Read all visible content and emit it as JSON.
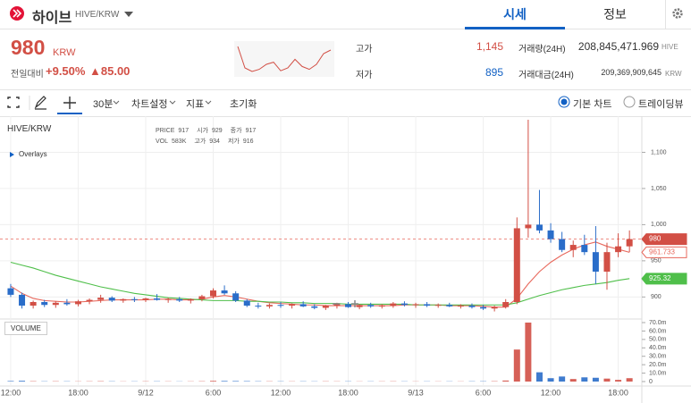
{
  "header": {
    "name": "하이브",
    "pair": "HIVE/KRW",
    "tabs": [
      "시세",
      "정보"
    ],
    "price": "980",
    "unit": "KRW",
    "change_label": "전일대비",
    "change_pct": "+9.50%",
    "change_abs": "▲85.00",
    "sparkline": [
      930,
      900,
      895,
      898,
      905,
      908,
      896,
      900,
      912,
      902,
      898,
      905,
      920,
      925
    ],
    "stats": [
      {
        "label": "고가",
        "value": "1,145"
      },
      {
        "label": "저가",
        "value": "895"
      },
      {
        "label": "거래량(24H)",
        "value": "208,845,471.969",
        "unit": "HIVE"
      },
      {
        "label": "거래대금(24H)",
        "value": "209,369,909,645",
        "unit": "KRW"
      }
    ]
  },
  "toolbar": {
    "interval": "30분",
    "items": [
      "차트설정",
      "지표",
      "초기화"
    ],
    "radios": [
      "기본 차트",
      "트레이딩뷰"
    ]
  },
  "legend": {
    "symbol": "HIVE/KRW",
    "overlays": "Overlays",
    "volume": "VOLUME",
    "price_row": [
      "PRICE",
      "917",
      "시가",
      "929",
      "종가",
      "917"
    ],
    "vol_row": [
      "VOL",
      "583K",
      "고가",
      "934",
      "저가",
      "916"
    ]
  },
  "chart_data": {
    "type": "candlestick",
    "up_color": "#d24f45",
    "down_color": "#2a6dc9",
    "grid": true,
    "x": [
      0,
      1,
      2,
      3,
      4,
      5,
      6,
      7,
      8,
      9,
      10,
      11,
      12,
      13,
      14,
      15,
      16,
      17,
      18,
      19,
      20,
      21,
      22,
      23,
      24,
      25,
      26,
      27,
      28,
      29,
      30,
      31,
      32,
      33,
      34,
      35,
      36,
      37,
      38,
      39,
      40,
      41,
      42,
      43,
      44,
      45,
      46,
      47,
      48,
      49,
      50,
      51,
      52,
      53,
      54,
      55
    ],
    "xlim": [
      -0.95,
      56.1
    ],
    "xticks": [
      {
        "value": 0,
        "label": "12:00"
      },
      {
        "value": 6,
        "label": "18:00"
      },
      {
        "value": 12,
        "label": "9/12"
      },
      {
        "value": 18,
        "label": "6:00"
      },
      {
        "value": 24,
        "label": "12:00"
      },
      {
        "value": 30,
        "label": "18:00"
      },
      {
        "value": 36,
        "label": "9/13"
      },
      {
        "value": 42,
        "label": "6:00"
      },
      {
        "value": 48,
        "label": "12:00"
      },
      {
        "value": 54,
        "label": "18:00"
      }
    ],
    "ylim": [
      872,
      1150
    ],
    "yticks": [
      900,
      950,
      {
        "value": 1000,
        "label": "1,000"
      },
      {
        "value": 1050,
        "label": "1,050"
      },
      {
        "value": 1100,
        "label": "1,100"
      }
    ],
    "open": [
      912,
      903,
      888,
      893,
      889,
      892,
      890,
      894,
      896,
      899,
      895,
      897,
      896,
      898,
      896,
      897,
      895,
      897,
      901,
      909,
      905,
      895,
      888,
      887,
      889,
      888,
      890,
      887,
      885,
      888,
      890,
      886,
      889,
      887,
      888,
      891,
      889,
      890,
      888,
      889,
      887,
      888,
      886,
      884,
      886,
      893,
      995,
      1000,
      992,
      980,
      965,
      972,
      962,
      935,
      962,
      970
    ],
    "high": [
      918,
      906,
      895,
      896,
      894,
      897,
      896,
      898,
      903,
      901,
      898,
      900,
      899,
      904,
      899,
      900,
      898,
      903,
      912,
      916,
      908,
      897,
      892,
      891,
      893,
      891,
      894,
      890,
      889,
      892,
      893,
      890,
      892,
      890,
      893,
      894,
      892,
      893,
      891,
      892,
      890,
      891,
      889,
      888,
      897,
      1010,
      1145,
      1048,
      1002,
      990,
      978,
      986,
      998,
      975,
      988,
      992
    ],
    "low": [
      900,
      884,
      884,
      886,
      885,
      888,
      887,
      890,
      892,
      893,
      892,
      893,
      893,
      895,
      892,
      893,
      891,
      894,
      898,
      903,
      893,
      886,
      884,
      884,
      885,
      884,
      886,
      883,
      882,
      884,
      885,
      883,
      885,
      884,
      885,
      887,
      885,
      886,
      885,
      886,
      884,
      884,
      882,
      880,
      884,
      890,
      982,
      988,
      975,
      962,
      955,
      958,
      918,
      910,
      955,
      962
    ],
    "close": [
      903,
      888,
      893,
      889,
      892,
      890,
      894,
      896,
      899,
      895,
      897,
      896,
      898,
      896,
      897,
      895,
      897,
      901,
      909,
      905,
      895,
      888,
      887,
      889,
      888,
      890,
      887,
      885,
      888,
      890,
      886,
      889,
      887,
      888,
      891,
      889,
      890,
      888,
      889,
      887,
      888,
      886,
      884,
      886,
      893,
      995,
      1000,
      992,
      980,
      965,
      972,
      962,
      935,
      962,
      970,
      980
    ],
    "lines": [
      {
        "color": "#e8685c",
        "values": [
          915,
          905,
          898,
          895,
          894,
          893,
          893,
          894,
          895,
          896,
          896,
          896,
          896,
          897,
          897,
          896,
          896,
          897,
          900,
          902,
          900,
          897,
          894,
          892,
          891,
          890,
          889,
          889,
          888,
          888,
          888,
          888,
          888,
          888,
          888,
          889,
          889,
          889,
          889,
          888,
          888,
          888,
          887,
          886,
          886,
          898,
          918,
          935,
          948,
          958,
          966,
          972,
          976,
          970,
          966,
          961.733
        ]
      },
      {
        "color": "#4fbf4a",
        "values": [
          948,
          944,
          940,
          935,
          930,
          926,
          922,
          918,
          914,
          911,
          908,
          905,
          903,
          901,
          899,
          898,
          897,
          896,
          895,
          895,
          895,
          894,
          894,
          893,
          893,
          892,
          892,
          891,
          891,
          891,
          890,
          890,
          890,
          890,
          890,
          890,
          889,
          889,
          889,
          889,
          889,
          889,
          889,
          889,
          889,
          892,
          897,
          902,
          906,
          910,
          913,
          916,
          918,
          920,
          923,
          925.32
        ]
      }
    ],
    "volume": {
      "values": [
        600000,
        900000,
        400000,
        300000,
        350000,
        300000,
        250000,
        300000,
        400000,
        300000,
        200000,
        250000,
        300000,
        300000,
        250000,
        200000,
        250000,
        350000,
        800000,
        700000,
        600000,
        500000,
        350000,
        300000,
        300000,
        250000,
        300000,
        250000,
        300000,
        250000,
        300000,
        200000,
        250000,
        250000,
        300000,
        250000,
        200000,
        250000,
        200000,
        250000,
        200000,
        300000,
        350000,
        400000,
        1200000,
        38000000,
        70000000,
        11000000,
        4000000,
        6000000,
        3000000,
        5000000,
        4500000,
        3500000,
        2000000,
        4000000
      ],
      "ylim": [
        0,
        70000000
      ],
      "yticks": [
        0,
        {
          "value": 10000000,
          "label": "10.0m"
        },
        {
          "value": 20000000,
          "label": "20.0m"
        },
        {
          "value": 30000000,
          "label": "30.0m"
        },
        {
          "value": 40000000,
          "label": "40.0m"
        },
        {
          "value": 50000000,
          "label": "50.0m"
        },
        {
          "value": 60000000,
          "label": "60.0m"
        },
        {
          "value": 70000000,
          "label": "70.0m"
        }
      ]
    }
  }
}
